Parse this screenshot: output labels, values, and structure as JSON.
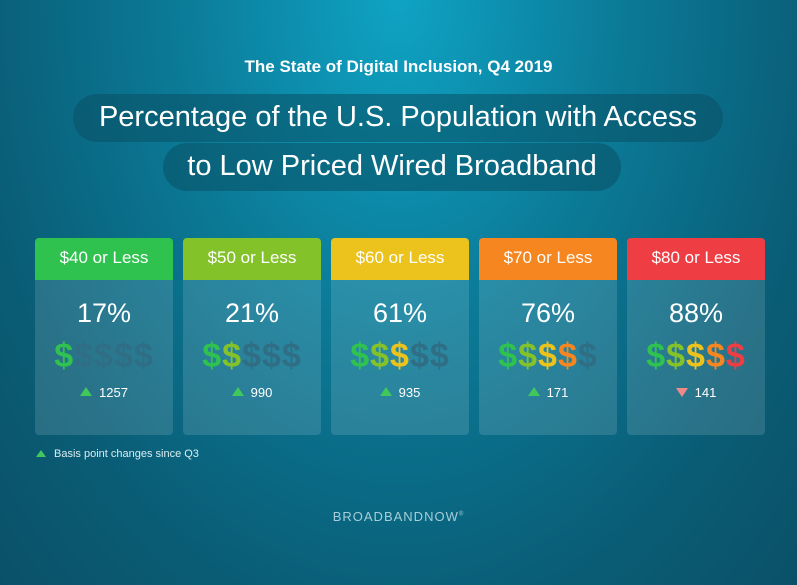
{
  "subtitle": "The State of Digital Inclusion, Q4 2019",
  "title_line1": "Percentage of the U.S. Population with Access",
  "title_line2": "to Low Priced Wired Broadband",
  "chart_data": {
    "type": "table",
    "categories": [
      "$40 or Less",
      "$50 or Less",
      "$60 or Less",
      "$70 or Less",
      "$80 or Less"
    ],
    "values": [
      17,
      21,
      61,
      76,
      88
    ],
    "value_labels": [
      "17%",
      "21%",
      "61%",
      "76%",
      "88%"
    ],
    "changes": [
      1257,
      990,
      935,
      171,
      141
    ],
    "change_labels": [
      "1257",
      "990",
      "935",
      "171",
      "141"
    ],
    "change_direction": [
      "up",
      "up",
      "up",
      "up",
      "down"
    ],
    "dollar_signs_active": [
      1,
      2,
      3,
      4,
      5
    ],
    "header_colors": [
      "#2fc24e",
      "#84c22a",
      "#ecc21c",
      "#f6861f",
      "#ef3d44"
    ],
    "dollar_colors": [
      "#2fc24e",
      "#84c22a",
      "#ecc21c",
      "#f6861f",
      "#ef3d44"
    ],
    "dollar_inactive_color": "#2f6e84",
    "up_color": "#41c85a",
    "down_color": "#f08a8a"
  },
  "footnote": "Basis point changes since Q3",
  "brand": "BROADBANDNOW",
  "brand_mark": "®"
}
